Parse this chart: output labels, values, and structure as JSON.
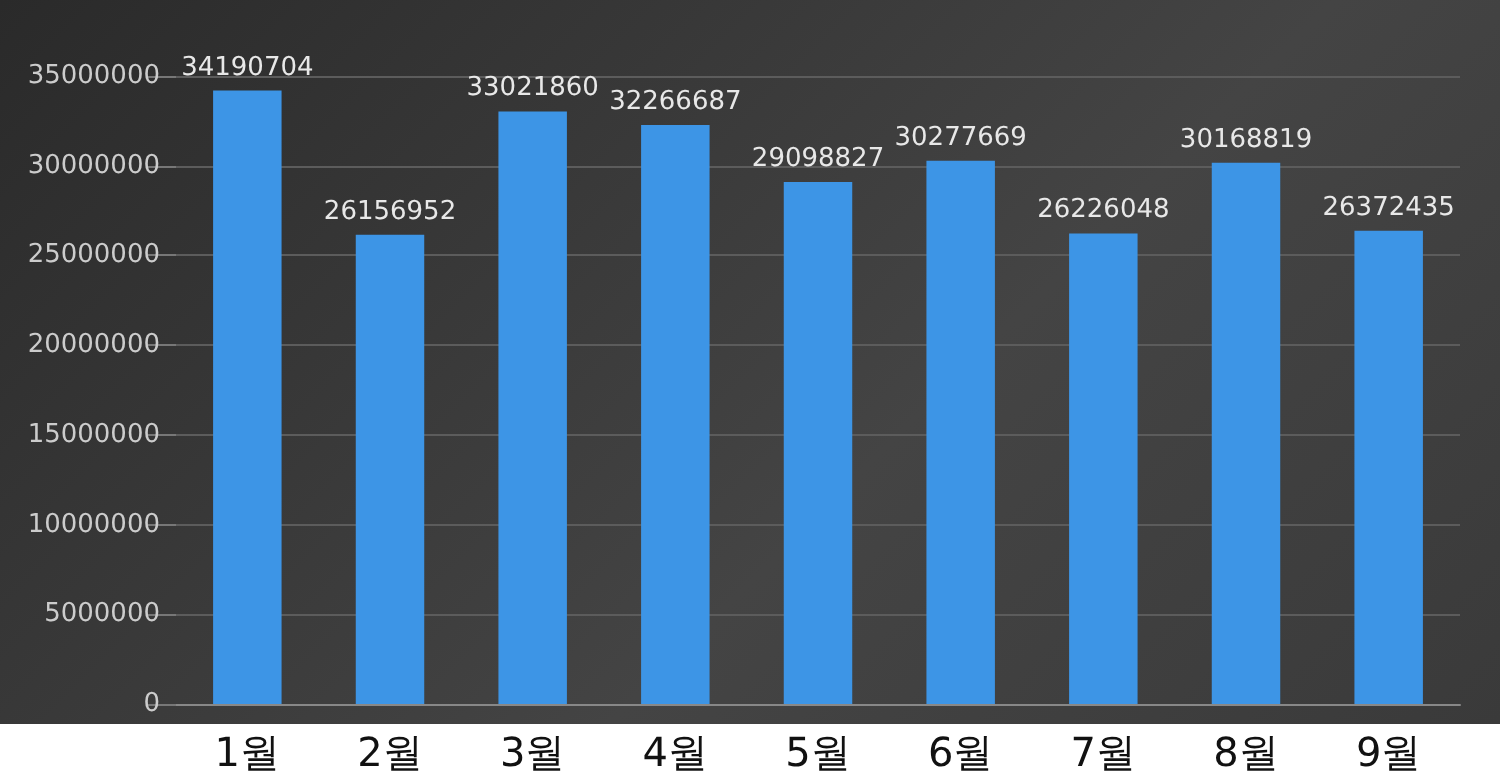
{
  "chart_data": {
    "type": "bar",
    "categories": [
      "1월",
      "2월",
      "3월",
      "4월",
      "5월",
      "6월",
      "7월",
      "8월",
      "9월"
    ],
    "values": [
      34190704,
      26156952,
      33021860,
      32266687,
      29098827,
      30277669,
      26226048,
      30168819,
      26372435
    ],
    "color": "#3d95e6",
    "ylim": [
      0,
      35000000
    ],
    "yticks": [
      0,
      5000000,
      10000000,
      15000000,
      20000000,
      25000000,
      30000000,
      35000000
    ],
    "grid": "y",
    "data_labels": true
  }
}
